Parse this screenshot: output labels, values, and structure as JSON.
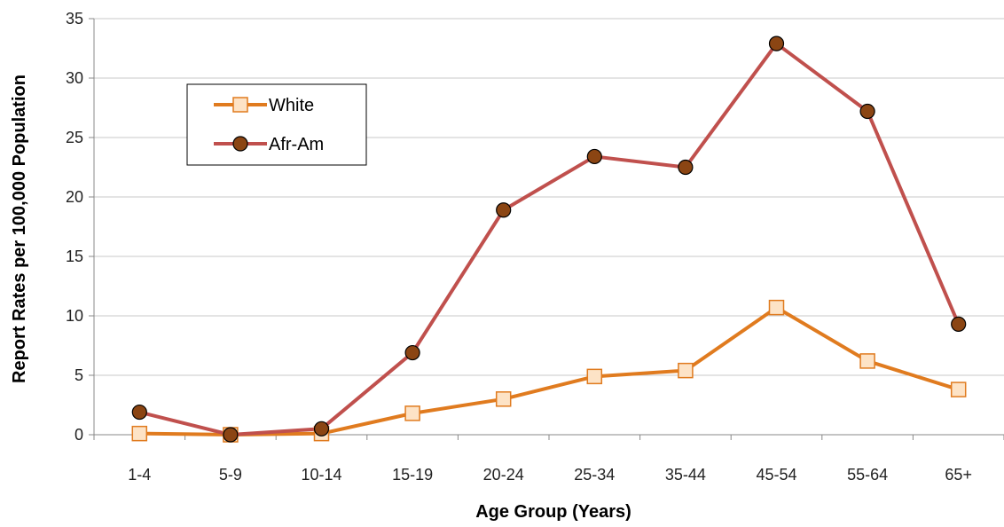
{
  "chart_data": {
    "type": "line",
    "title": "",
    "xlabel": "Age Group (Years)",
    "ylabel": "Report Rates per 100,000  Population",
    "categories": [
      "1-4",
      "5-9",
      "10-14",
      "15-19",
      "20-24",
      "25-34",
      "35-44",
      "45-54",
      "55-64",
      "65+"
    ],
    "ylim": [
      0,
      35
    ],
    "yticks": [
      0,
      5,
      10,
      15,
      20,
      25,
      30,
      35
    ],
    "grid": true,
    "legend_position": "top-left",
    "series": [
      {
        "name": "White",
        "color": "#e07b1f",
        "marker": "square",
        "marker_fill": "#fde3c6",
        "values": [
          0.1,
          0.0,
          0.1,
          1.8,
          3.0,
          4.9,
          5.4,
          10.7,
          6.2,
          3.8
        ]
      },
      {
        "name": "Afr-Am",
        "color": "#c0504d",
        "marker": "circle",
        "marker_fill": "#8b4513",
        "values": [
          1.9,
          0.0,
          0.5,
          6.9,
          18.9,
          23.4,
          22.5,
          32.9,
          27.2,
          9.3
        ]
      }
    ]
  }
}
